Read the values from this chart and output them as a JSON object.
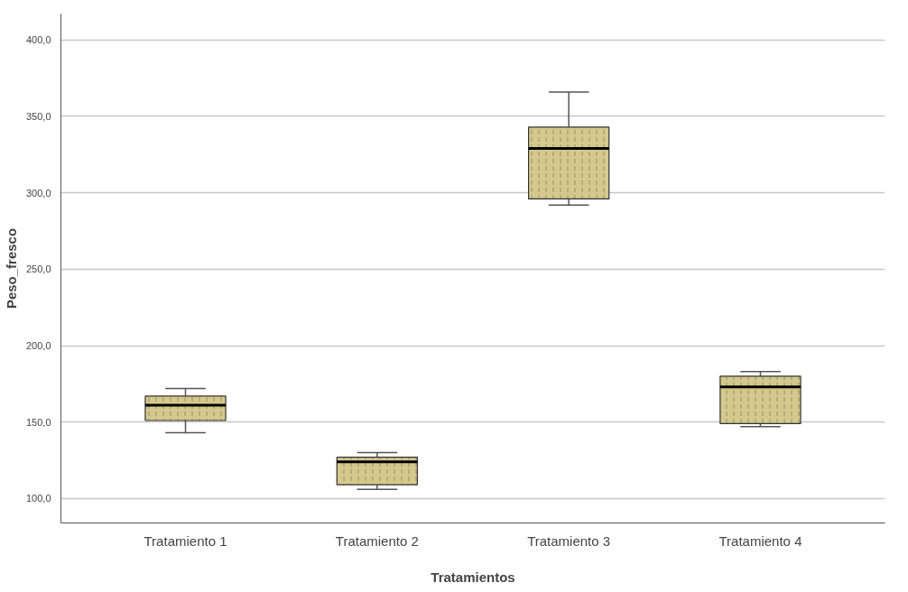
{
  "chart_data": {
    "type": "box",
    "xlabel": "Tratamientos",
    "ylabel": "Peso_fresco",
    "categories": [
      "Tratamiento 1",
      "Tratamiento 2",
      "Tratamiento 3",
      "Tratamiento 4"
    ],
    "boxes": [
      {
        "low": 143,
        "q1": 151,
        "median": 161,
        "q3": 167,
        "high": 172
      },
      {
        "low": 106,
        "q1": 109,
        "median": 124,
        "q3": 127,
        "high": 130
      },
      {
        "low": 292,
        "q1": 296,
        "median": 329,
        "q3": 343,
        "high": 366
      },
      {
        "low": 147,
        "q1": 149,
        "median": 173,
        "q3": 180,
        "high": 183
      }
    ],
    "color": "#d4c98c",
    "ylim": [
      84,
      417
    ],
    "yticks": [
      {
        "value": 100,
        "label": "100,0"
      },
      {
        "value": 150,
        "label": "150,0"
      },
      {
        "value": 200,
        "label": "200,0"
      },
      {
        "value": 250,
        "label": "250,0"
      },
      {
        "value": 300,
        "label": "300,0"
      },
      {
        "value": 350,
        "label": "350,0"
      },
      {
        "value": 400,
        "label": "400,0"
      }
    ],
    "grid": "y"
  }
}
